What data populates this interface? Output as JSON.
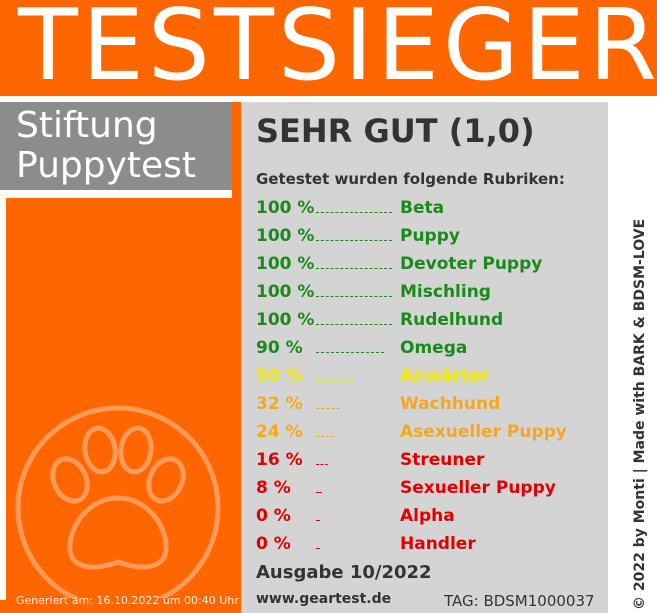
{
  "banner": {
    "title": "TESTSIEGER"
  },
  "brand": {
    "line1": "Stiftung",
    "line2": "Puppytest"
  },
  "verdict": "SEHR GUT (1,0)",
  "intro": "Getestet wurden folgende Rubriken:",
  "colors": {
    "green": "#1a8a1a",
    "yellow": "#f2ea00",
    "orange": "#f5a623",
    "red": "#e00000"
  },
  "rubrics": [
    {
      "pct": "100 %",
      "name": "Beta",
      "level": 1.0,
      "color": "#1a8a1a"
    },
    {
      "pct": "100 %",
      "name": "Puppy",
      "level": 1.0,
      "color": "#1a8a1a"
    },
    {
      "pct": "100 %",
      "name": "Devoter Puppy",
      "level": 1.0,
      "color": "#1a8a1a"
    },
    {
      "pct": "100 %",
      "name": "Mischling",
      "level": 1.0,
      "color": "#1a8a1a"
    },
    {
      "pct": "100 %",
      "name": "Rudelhund",
      "level": 1.0,
      "color": "#1a8a1a"
    },
    {
      "pct": "90 %",
      "name": "Omega",
      "level": 0.9,
      "color": "#1a8a1a"
    },
    {
      "pct": "50 %",
      "name": "Anwärter",
      "level": 0.5,
      "color": "#f2ea00"
    },
    {
      "pct": "32 %",
      "name": "Wachhund",
      "level": 0.32,
      "color": "#f5a623"
    },
    {
      "pct": "24 %",
      "name": "Asexueller Puppy",
      "level": 0.24,
      "color": "#f5a623"
    },
    {
      "pct": "16 %",
      "name": "Streuner",
      "level": 0.16,
      "color": "#e00000"
    },
    {
      "pct": "8 %",
      "name": "Sexueller Puppy",
      "level": 0.08,
      "color": "#e00000"
    },
    {
      "pct": "0 %",
      "name": "Alpha",
      "level": 0.0,
      "color": "#e00000"
    },
    {
      "pct": "0 %",
      "name": "Handler",
      "level": 0.0,
      "color": "#e00000"
    }
  ],
  "issue": "Ausgabe 10/2022",
  "site": "www.geartest.de",
  "tag": "TAG: BDSM1000037",
  "generated": "Generiert am: 16.10.2022 um 00:40 Uhr",
  "copyright": "© 2022 by Monti | Made with BARK & BDSM-LOVE",
  "icons": {
    "emblem": "paw-print-icon"
  }
}
